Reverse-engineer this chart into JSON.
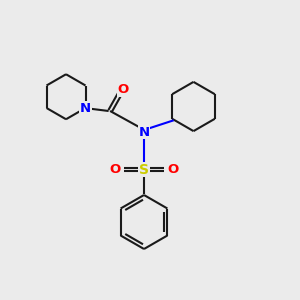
{
  "bg_color": "#ebebeb",
  "bond_color": "#1a1a1a",
  "N_color": "#0000ff",
  "O_color": "#ff0000",
  "S_color": "#cccc00",
  "line_width": 1.5,
  "figsize": [
    3.0,
    3.0
  ],
  "dpi": 100,
  "xlim": [
    0,
    10
  ],
  "ylim": [
    0,
    10
  ]
}
